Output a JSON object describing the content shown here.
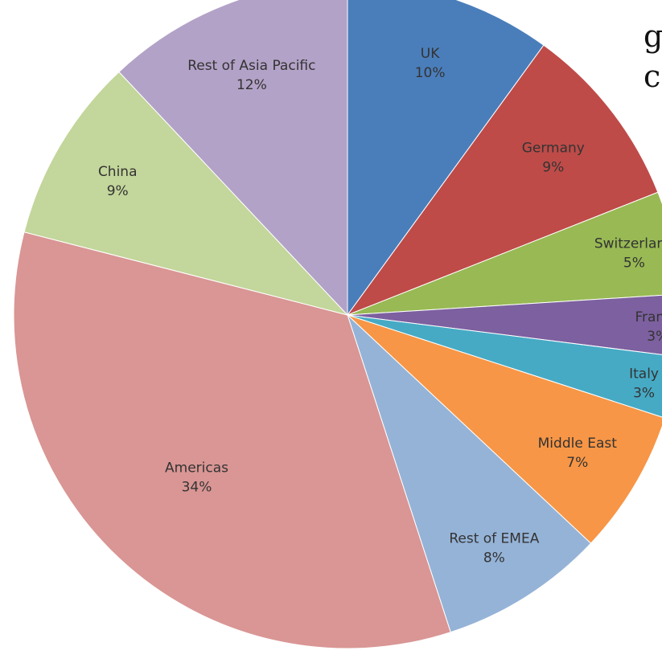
{
  "chart_data": {
    "type": "pie",
    "title": "",
    "slices": [
      {
        "label": "UK",
        "value": 10,
        "pct_label": "10%",
        "color": "#4a7ebb"
      },
      {
        "label": "Germany",
        "value": 9,
        "pct_label": "9%",
        "color": "#be4b48"
      },
      {
        "label": "Switzerland",
        "value": 5,
        "pct_label": "5%",
        "color": "#98b954"
      },
      {
        "label": "France",
        "value": 3,
        "pct_label": "3%",
        "color": "#7d60a0"
      },
      {
        "label": "Italy",
        "value": 3,
        "pct_label": "3%",
        "color": "#46aac5"
      },
      {
        "label": "Middle East",
        "value": 7,
        "pct_label": "7%",
        "color": "#f79646"
      },
      {
        "label": "Rest of EMEA",
        "value": 8,
        "pct_label": "8%",
        "color": "#95b3d7"
      },
      {
        "label": "Americas",
        "value": 34,
        "pct_label": "34%",
        "color": "#d99694"
      },
      {
        "label": "China",
        "value": 9,
        "pct_label": "9%",
        "color": "#c3d69b"
      },
      {
        "label": "Rest of Asia Pacific",
        "value": 12,
        "pct_label": "12%",
        "color": "#b3a2c7"
      }
    ],
    "start_angle_deg": 0,
    "direction": "clockwise"
  },
  "corner_text": {
    "line1": "g",
    "line2": "c"
  }
}
